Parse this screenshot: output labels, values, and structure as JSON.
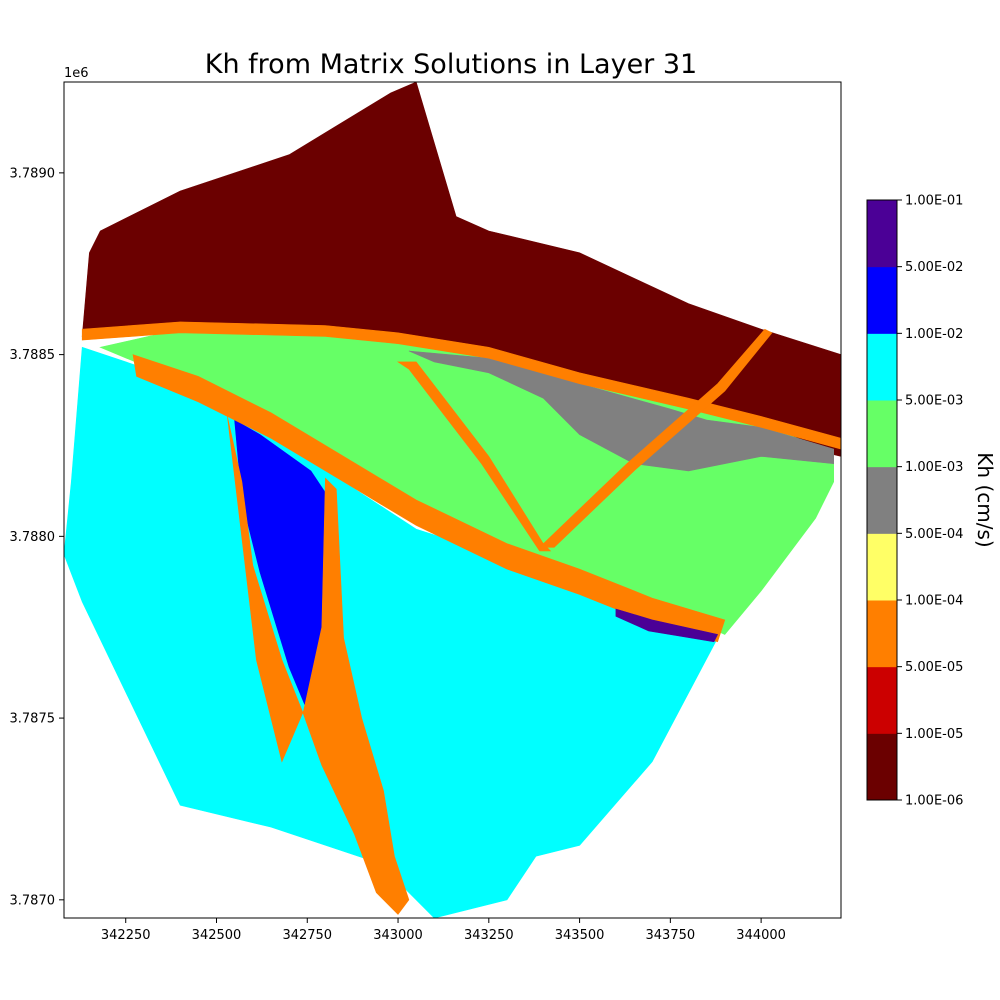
{
  "chart_data": {
    "type": "heatmap",
    "title": "Kh from Matrix Solutions in Layer 31",
    "xlabel": "",
    "ylabel": "",
    "y_offset_label": "1e6",
    "xlim": [
      342080,
      344220
    ],
    "ylim": [
      3786950,
      3789250
    ],
    "x_ticks": [
      342250,
      342500,
      342750,
      343000,
      343250,
      343500,
      343750,
      344000
    ],
    "x_tick_labels": [
      "342250",
      "342500",
      "342750",
      "343000",
      "343250",
      "343500",
      "343750",
      "344000"
    ],
    "y_ticks": [
      3787000,
      3787500,
      3788000,
      3788500,
      3789000
    ],
    "y_tick_labels": [
      "3.7870",
      "3.7875",
      "3.7880",
      "3.7885",
      "3.7890"
    ],
    "colorbar": {
      "label": "Kh (cm/s)",
      "scale": "log",
      "bounds": [
        "1.00E-06",
        "1.00E-05",
        "5.00E-05",
        "1.00E-04",
        "5.00E-04",
        "1.00E-03",
        "5.00E-03",
        "1.00E-02",
        "5.00E-02",
        "1.00E-01"
      ],
      "colors": [
        "#6b0000",
        "#cc0000",
        "#ff7f00",
        "#ffff66",
        "#808080",
        "#66ff66",
        "#00ffff",
        "#0000ff",
        "#4b0096"
      ]
    },
    "zones": [
      {
        "name": "north",
        "kh_class": 0,
        "color": "#6b0000",
        "polygon": [
          [
            342150,
            3788780
          ],
          [
            342180,
            3788840
          ],
          [
            342400,
            3788950
          ],
          [
            342700,
            3789050
          ],
          [
            342980,
            3789220
          ],
          [
            343050,
            3789250
          ],
          [
            343160,
            3788880
          ],
          [
            343250,
            3788840
          ],
          [
            343500,
            3788780
          ],
          [
            343800,
            3788640
          ],
          [
            344000,
            3788570
          ],
          [
            344220,
            3788500
          ],
          [
            344220,
            3788220
          ],
          [
            343800,
            3788320
          ],
          [
            343500,
            3788430
          ],
          [
            343250,
            3788500
          ],
          [
            343000,
            3788540
          ],
          [
            342650,
            3788570
          ],
          [
            342400,
            3788570
          ],
          [
            342130,
            3788550
          ]
        ]
      },
      {
        "name": "south-west",
        "kh_class": 6,
        "color": "#00ffff",
        "polygon": [
          [
            342130,
            3788520
          ],
          [
            342280,
            3788470
          ],
          [
            342430,
            3788400
          ],
          [
            342600,
            3788300
          ],
          [
            342850,
            3788150
          ],
          [
            343050,
            3788020
          ],
          [
            343300,
            3787940
          ],
          [
            343500,
            3787870
          ],
          [
            343700,
            3787780
          ],
          [
            343880,
            3787720
          ],
          [
            343700,
            3787380
          ],
          [
            343500,
            3787150
          ],
          [
            343380,
            3787120
          ],
          [
            343300,
            3787000
          ],
          [
            343100,
            3786950
          ],
          [
            342950,
            3787100
          ],
          [
            342650,
            3787200
          ],
          [
            342400,
            3787260
          ],
          [
            342130,
            3787820
          ],
          [
            342080,
            3787950
          ],
          [
            342100,
            3788150
          ]
        ]
      },
      {
        "name": "central",
        "kh_class": 5,
        "color": "#66ff66",
        "polygon": [
          [
            342180,
            3788520
          ],
          [
            342400,
            3788570
          ],
          [
            342800,
            3788560
          ],
          [
            343000,
            3788530
          ],
          [
            343250,
            3788490
          ],
          [
            343500,
            3788420
          ],
          [
            343800,
            3788360
          ],
          [
            344000,
            3788310
          ],
          [
            344200,
            3788230
          ],
          [
            344200,
            3788150
          ],
          [
            344150,
            3788050
          ],
          [
            344000,
            3787850
          ],
          [
            343900,
            3787730
          ],
          [
            343700,
            3787820
          ],
          [
            343500,
            3787880
          ],
          [
            343300,
            3787950
          ],
          [
            343100,
            3788010
          ],
          [
            342900,
            3788130
          ],
          [
            342700,
            3788260
          ],
          [
            342500,
            3788380
          ],
          [
            342300,
            3788470
          ]
        ]
      },
      {
        "name": "gray",
        "kh_class": 4,
        "color": "#808080",
        "polygon": [
          [
            343030,
            3788510
          ],
          [
            343250,
            3788490
          ],
          [
            343500,
            3788420
          ],
          [
            343750,
            3788350
          ],
          [
            343850,
            3788320
          ],
          [
            344000,
            3788300
          ],
          [
            344200,
            3788240
          ],
          [
            344200,
            3788200
          ],
          [
            344000,
            3788220
          ],
          [
            343800,
            3788180
          ],
          [
            343650,
            3788200
          ],
          [
            343500,
            3788280
          ],
          [
            343400,
            3788380
          ],
          [
            343250,
            3788450
          ],
          [
            343100,
            3788480
          ]
        ]
      },
      {
        "name": "channel-main",
        "kh_class": 7,
        "color": "#0000ff",
        "polygon": [
          [
            342280,
            3788480
          ],
          [
            342450,
            3788420
          ],
          [
            342650,
            3788320
          ],
          [
            342850,
            3788200
          ],
          [
            343050,
            3788080
          ],
          [
            343300,
            3787960
          ],
          [
            343500,
            3787890
          ],
          [
            343700,
            3787810
          ],
          [
            343880,
            3787760
          ],
          [
            343870,
            3787730
          ],
          [
            343700,
            3787780
          ],
          [
            343500,
            3787860
          ],
          [
            343300,
            3787930
          ],
          [
            343050,
            3788050
          ],
          [
            342850,
            3788170
          ],
          [
            342650,
            3788290
          ],
          [
            342450,
            3788390
          ],
          [
            342290,
            3788460
          ]
        ]
      },
      {
        "name": "channel-south",
        "kh_class": 7,
        "color": "#0000ff",
        "polygon": [
          [
            342550,
            3788320
          ],
          [
            342620,
            3788280
          ],
          [
            342760,
            3788180
          ],
          [
            342800,
            3788120
          ],
          [
            342820,
            3787700
          ],
          [
            342870,
            3787500
          ],
          [
            342940,
            3787220
          ],
          [
            342970,
            3787080
          ],
          [
            342950,
            3787050
          ],
          [
            342890,
            3787200
          ],
          [
            342800,
            3787380
          ],
          [
            342750,
            3787520
          ],
          [
            342700,
            3787640
          ],
          [
            342620,
            3787900
          ],
          [
            342570,
            3788100
          ]
        ]
      },
      {
        "name": "orange-top",
        "kh_class": 2,
        "color": "#ff7f00",
        "polygon": [
          [
            342130,
            3788570
          ],
          [
            342400,
            3788590
          ],
          [
            342800,
            3788580
          ],
          [
            343000,
            3788560
          ],
          [
            343250,
            3788520
          ],
          [
            343500,
            3788450
          ],
          [
            343800,
            3788380
          ],
          [
            344000,
            3788330
          ],
          [
            344220,
            3788270
          ],
          [
            344220,
            3788240
          ],
          [
            344000,
            3788300
          ],
          [
            343800,
            3788350
          ],
          [
            343500,
            3788420
          ],
          [
            343250,
            3788490
          ],
          [
            343000,
            3788530
          ],
          [
            342800,
            3788550
          ],
          [
            342400,
            3788560
          ],
          [
            342130,
            3788540
          ]
        ]
      },
      {
        "name": "orange-band",
        "kh_class": 2,
        "color": "#ff7f00",
        "polygon": [
          [
            342270,
            3788500
          ],
          [
            342450,
            3788440
          ],
          [
            342650,
            3788340
          ],
          [
            342850,
            3788220
          ],
          [
            343050,
            3788100
          ],
          [
            343300,
            3787980
          ],
          [
            343500,
            3787910
          ],
          [
            343700,
            3787830
          ],
          [
            343900,
            3787770
          ],
          [
            343880,
            3787710
          ],
          [
            343700,
            3787760
          ],
          [
            343500,
            3787840
          ],
          [
            343300,
            3787910
          ],
          [
            343050,
            3788030
          ],
          [
            342850,
            3788150
          ],
          [
            342650,
            3788270
          ],
          [
            342450,
            3788370
          ],
          [
            342280,
            3788440
          ]
        ]
      },
      {
        "name": "orange-channel-edge",
        "kh_class": 2,
        "color": "#ff7f00",
        "polygon": [
          [
            342530,
            3788330
          ],
          [
            342570,
            3788150
          ],
          [
            342600,
            3787920
          ],
          [
            342680,
            3787660
          ],
          [
            342740,
            3787510
          ],
          [
            342790,
            3787370
          ],
          [
            342880,
            3787180
          ],
          [
            342940,
            3787020
          ],
          [
            343000,
            3786960
          ],
          [
            343030,
            3787000
          ],
          [
            342990,
            3787120
          ],
          [
            342960,
            3787300
          ],
          [
            342900,
            3787500
          ],
          [
            342850,
            3787720
          ],
          [
            342830,
            3788130
          ],
          [
            342800,
            3788160
          ],
          [
            342790,
            3787750
          ],
          [
            342740,
            3787520
          ],
          [
            342680,
            3787380
          ],
          [
            342610,
            3787660
          ]
        ]
      },
      {
        "name": "orange-diagonal-1",
        "kh_class": 2,
        "color": "#ff7f00",
        "polygon": [
          [
            343000,
            3788480
          ],
          [
            343050,
            3788480
          ],
          [
            343250,
            3788220
          ],
          [
            343400,
            3787980
          ],
          [
            343420,
            3787960
          ],
          [
            343390,
            3787960
          ],
          [
            343230,
            3788200
          ],
          [
            343030,
            3788460
          ]
        ]
      },
      {
        "name": "orange-diagonal-2",
        "kh_class": 2,
        "color": "#ff7f00",
        "polygon": [
          [
            343390,
            3787970
          ],
          [
            343430,
            3787970
          ],
          [
            343650,
            3788180
          ],
          [
            343900,
            3788400
          ],
          [
            344030,
            3788560
          ],
          [
            344010,
            3788570
          ],
          [
            343880,
            3788420
          ],
          [
            343630,
            3788200
          ]
        ]
      },
      {
        "name": "violet-cells",
        "kh_class": 8,
        "color": "#4b0096",
        "polygon": [
          [
            343600,
            3787800
          ],
          [
            343700,
            3787770
          ],
          [
            343880,
            3787730
          ],
          [
            343870,
            3787710
          ],
          [
            343690,
            3787740
          ],
          [
            343600,
            3787780
          ]
        ]
      }
    ]
  }
}
